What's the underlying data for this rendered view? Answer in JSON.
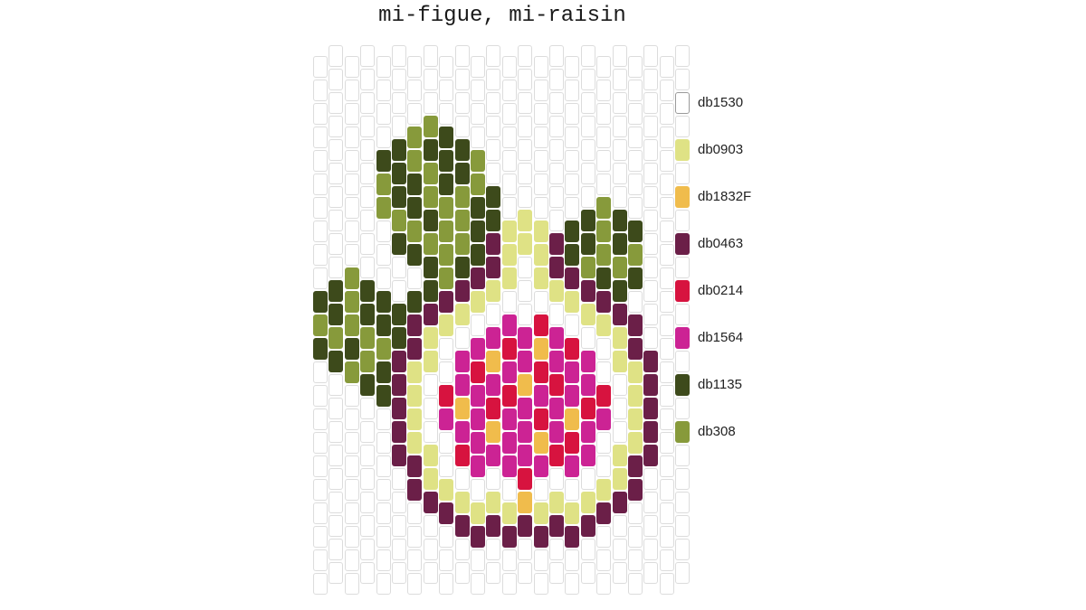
{
  "title": "mi-figue, mi-raisin",
  "palette": {
    "W": {
      "code": "db1530",
      "color": "#ffffff"
    },
    "Y": {
      "code": "db0903",
      "color": "#dfe285"
    },
    "O": {
      "code": "db1832F",
      "color": "#f0bc4c"
    },
    "P": {
      "code": "db0463",
      "color": "#6b1f48"
    },
    "R": {
      "code": "db0214",
      "color": "#d7133f"
    },
    "M": {
      "code": "db1564",
      "color": "#cc2394"
    },
    "D": {
      "code": "db1135",
      "color": "#3d4a1b"
    },
    "G": {
      "code": "db308",
      "color": "#879a3b"
    }
  },
  "legend": [
    {
      "key": "W",
      "label": "db1530",
      "color": "#ffffff"
    },
    {
      "key": "Y",
      "label": "db0903",
      "color": "#dfe285"
    },
    {
      "key": "O",
      "label": "db1832F",
      "color": "#f0bc4c"
    },
    {
      "key": "P",
      "label": "db0463",
      "color": "#6b1f48"
    },
    {
      "key": "R",
      "label": "db0214",
      "color": "#d7133f"
    },
    {
      "key": "M",
      "label": "db1564",
      "color": "#cc2394"
    },
    {
      "key": "D",
      "label": "db1135",
      "color": "#3d4a1b"
    },
    {
      "key": "G",
      "label": "db308",
      "color": "#879a3b"
    }
  ],
  "pattern_columns": [
    "WWWWWWWWWWDGDWWWWWWWWWW",
    "WWWWWWWWWWDDGDWWWWWWWWW",
    "WWWWWWWWWGGGDGWWWWWWWWW",
    "WWWWWWWWWWDDGGDWWWWWWWW",
    "WWWWDGGWWWDDGDDWWWWWWWW",
    "WWWWDDDGDWWDDPPPPPWWWWW",
    "WWWGGDDGDWDPPYYYYPPWWWW",
    "WWWGDGGDGDDPYYWWWYYPWWW",
    "WWWDDDGGGGPYWWRMWWYPWWW",
    "WWWWDDGGGDPYWMMOMRWYPWW",
    "WWWWGGDDDPYWMRMMMMWYPWW",
    "WWWWWWDDPPYWMOMROMWYPWW",
    "WWWWWWWYYYWMRMRMMMWYPWW",
    "WWWWWWWYYWWWMMOMMMROPWW",
    "WWWWWWWYYYWRORMROMWYPWW",
    "WWWWWWWWPPYWMMRMMRWYPWW",
    "WWWWWWWDDPYWRMMORMWYPWW",
    "WWWWWWWDDGPYWMMRMMWYPWW",
    "WWWWWWGGGDPYWWRMWWYPWWW",
    "WWWWWWWDDGDPYYWWWYYPWWW",
    "WWWWWWWDGDWPPYYYYPPWWWW",
    "WWWWWWWWWWWWWPPPPPWWWWW",
    "WWWWWWWWWWWWWWWWWWWWWWW",
    "WWWWWWWWWWWWWWWWWWWWWWW"
  ]
}
